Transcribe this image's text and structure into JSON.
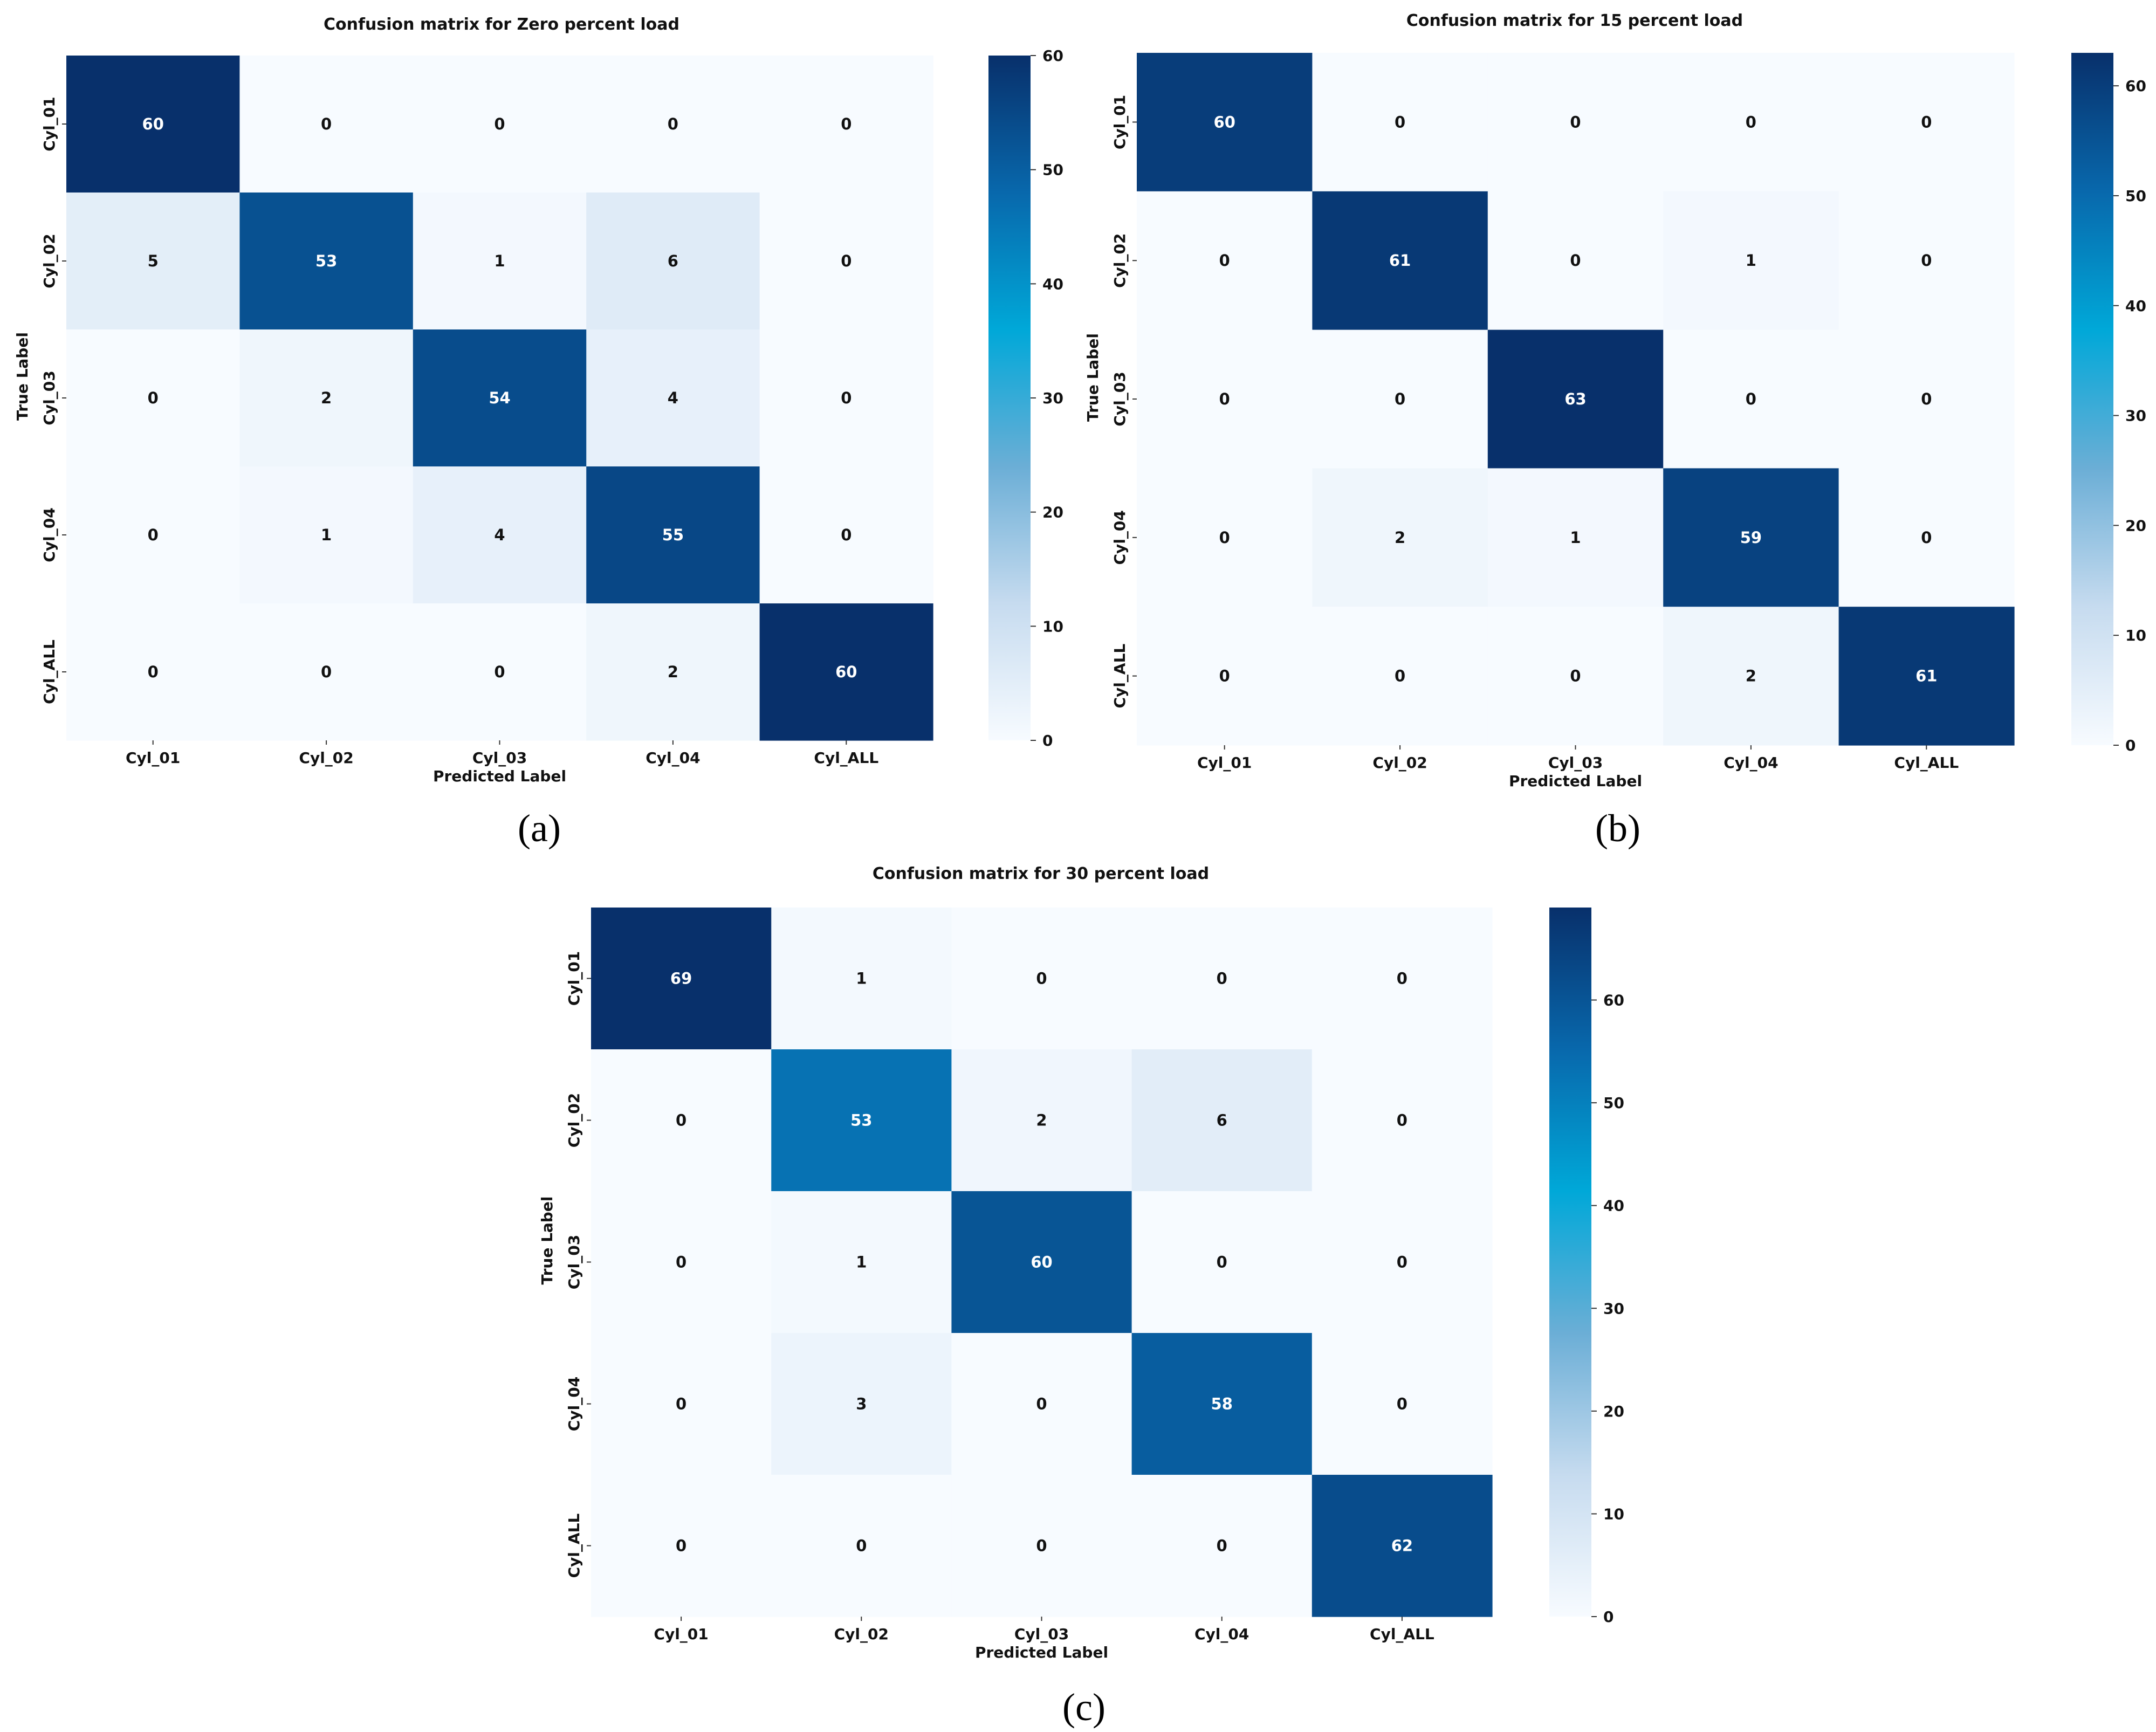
{
  "colors": {
    "cmap": [
      "#f7fbff",
      "#c6dbef",
      "#6baed6",
      "#00a8d8",
      "#0868ac",
      "#08306b"
    ],
    "text_light": "#ffffff",
    "text_dark": "#111111",
    "tick": "#333333"
  },
  "chart_data": [
    {
      "type": "heatmap",
      "panel": "(a)",
      "title": "Confusion matrix for Zero percent load",
      "xlabel": "Predicted Label",
      "ylabel": "True Label",
      "x_categories": [
        "Cyl_01",
        "Cyl_02",
        "Cyl_03",
        "Cyl_04",
        "Cyl_ALL"
      ],
      "y_categories": [
        "Cyl_01",
        "Cyl_02",
        "Cyl_03",
        "Cyl_04",
        "Cyl_ALL"
      ],
      "values": [
        [
          60,
          0,
          0,
          0,
          0
        ],
        [
          5,
          53,
          1,
          6,
          0
        ],
        [
          0,
          2,
          54,
          4,
          0
        ],
        [
          0,
          1,
          4,
          55,
          0
        ],
        [
          0,
          0,
          0,
          2,
          60
        ]
      ],
      "colorbar": {
        "min": 0,
        "max": 60,
        "ticks": [
          0,
          10,
          20,
          30,
          40,
          50,
          60
        ]
      }
    },
    {
      "type": "heatmap",
      "panel": "(b)",
      "title": "Confusion matrix for 15 percent load",
      "xlabel": "Predicted Label",
      "ylabel": "True Label",
      "x_categories": [
        "Cyl_01",
        "Cyl_02",
        "Cyl_03",
        "Cyl_04",
        "Cyl_ALL"
      ],
      "y_categories": [
        "Cyl_01",
        "Cyl_02",
        "Cyl_03",
        "Cyl_04",
        "Cyl_ALL"
      ],
      "values": [
        [
          60,
          0,
          0,
          0,
          0
        ],
        [
          0,
          61,
          0,
          1,
          0
        ],
        [
          0,
          0,
          63,
          0,
          0
        ],
        [
          0,
          2,
          1,
          59,
          0
        ],
        [
          0,
          0,
          0,
          2,
          61
        ]
      ],
      "colorbar": {
        "min": 0,
        "max": 63,
        "ticks": [
          0,
          10,
          20,
          30,
          40,
          50,
          60
        ]
      }
    },
    {
      "type": "heatmap",
      "panel": "(c)",
      "title": "Confusion matrix for 30 percent load",
      "xlabel": "Predicted Label",
      "ylabel": "True Label",
      "x_categories": [
        "Cyl_01",
        "Cyl_02",
        "Cyl_03",
        "Cyl_04",
        "Cyl_ALL"
      ],
      "y_categories": [
        "Cyl_01",
        "Cyl_02",
        "Cyl_03",
        "Cyl_04",
        "Cyl_ALL"
      ],
      "values": [
        [
          69,
          1,
          0,
          0,
          0
        ],
        [
          0,
          53,
          2,
          6,
          0
        ],
        [
          0,
          1,
          60,
          0,
          0
        ],
        [
          0,
          3,
          0,
          58,
          0
        ],
        [
          0,
          0,
          0,
          0,
          62
        ]
      ],
      "colorbar": {
        "min": 0,
        "max": 69,
        "ticks": [
          0,
          10,
          20,
          30,
          40,
          50,
          60
        ]
      }
    }
  ]
}
